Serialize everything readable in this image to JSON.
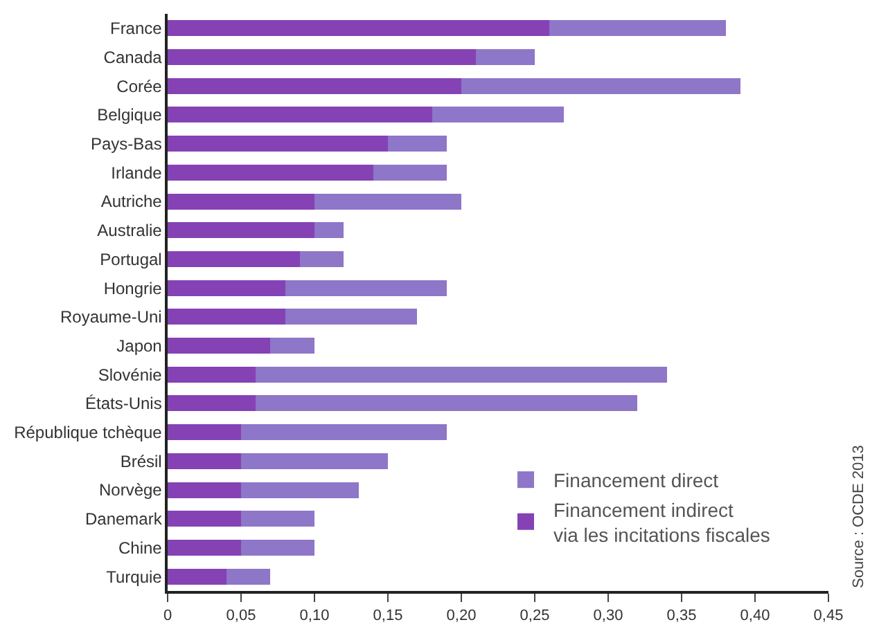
{
  "chart_data": {
    "type": "bar",
    "orientation": "horizontal",
    "stacked": true,
    "categories": [
      "France",
      "Canada",
      "Corée",
      "Belgique",
      "Pays-Bas",
      "Irlande",
      "Autriche",
      "Australie",
      "Portugal",
      "Hongrie",
      "Royaume-Uni",
      "Japon",
      "Slovénie",
      "États-Unis",
      "République tchèque",
      "Brésil",
      "Norvège",
      "Danemark",
      "Chine",
      "Turquie"
    ],
    "series": [
      {
        "name": "Financement indirect\nvia les incitations fiscales",
        "color": "#8542b4",
        "values": [
          0.26,
          0.21,
          0.2,
          0.18,
          0.15,
          0.14,
          0.1,
          0.1,
          0.09,
          0.08,
          0.08,
          0.07,
          0.06,
          0.06,
          0.05,
          0.05,
          0.05,
          0.05,
          0.05,
          0.04
        ]
      },
      {
        "name": "Financement direct",
        "color": "#8e76c8",
        "values": [
          0.12,
          0.04,
          0.19,
          0.09,
          0.04,
          0.05,
          0.1,
          0.02,
          0.03,
          0.11,
          0.09,
          0.03,
          0.28,
          0.26,
          0.14,
          0.1,
          0.08,
          0.05,
          0.05,
          0.03
        ]
      }
    ],
    "xlim": [
      0,
      0.45
    ],
    "xticks": [
      0,
      {
        "value": 0.05,
        "label": "0,05"
      },
      {
        "value": 0.1,
        "label": "0,10"
      },
      {
        "value": 0.15,
        "label": "0,15"
      },
      {
        "value": 0.2,
        "label": "0,20"
      },
      {
        "value": 0.25,
        "label": "0,25"
      },
      {
        "value": 0.3,
        "label": "0,30"
      },
      {
        "value": 0.35,
        "label": "0,35"
      },
      {
        "value": 0.4,
        "label": "0,40"
      },
      {
        "value": 0.45,
        "label": "0,45"
      }
    ],
    "legend": "bottom right",
    "annotations": [
      "Source : OCDE 2013"
    ]
  }
}
